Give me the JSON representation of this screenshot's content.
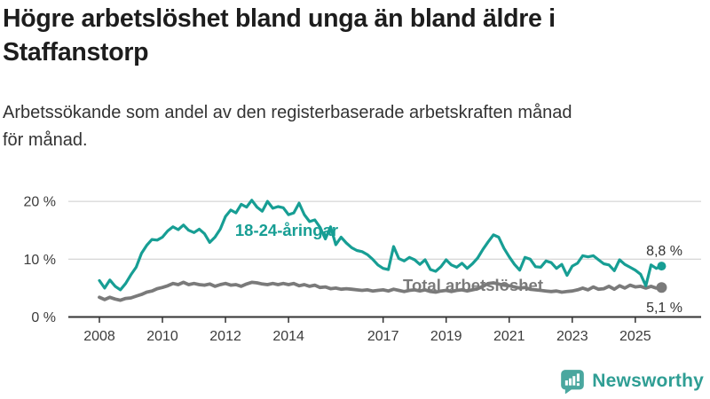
{
  "header": {
    "title_line1": "Högre arbetslöshet bland unga än bland äldre i",
    "title_line2": "Staffanstorp",
    "subtitle_line1": "Arbetssökande som andel av den registerbaserade arbetskraften månad",
    "subtitle_line2": "för månad."
  },
  "footer": {
    "brand": "Newsworthy",
    "logo_icon": "newsworthy-speech-bubble-bar-chart-icon"
  },
  "colors": {
    "youth_line": "#179e94",
    "total_line": "#7a7a7a",
    "axis": "#333333",
    "gridline": "#cccccc",
    "tick_label": "#3c3c3c",
    "annotation": "#333333",
    "title": "#1d1d1d",
    "brand_teal": "#2f9e94",
    "brand_icon_teal": "#4aa79f"
  },
  "chart_data": {
    "type": "line",
    "title": "Högre arbetslöshet bland unga än bland äldre i Staffanstorp",
    "subtitle": "Arbetssökande som andel av den registerbaserade arbetskraften månad för månad.",
    "unit": "%",
    "x_start_year": 2008,
    "x_step_months": 2,
    "x_end_year_approx": 2025.83,
    "x_tick_years": [
      2008,
      2010,
      2012,
      2014,
      2017,
      2019,
      2021,
      2023,
      2025
    ],
    "x_tick_labels": [
      "2008",
      "2010",
      "2012",
      "2014",
      "2017",
      "2019",
      "2021",
      "2023",
      "2025"
    ],
    "y_ticks": [
      0,
      10,
      20
    ],
    "y_tick_labels": [
      "0 %",
      "10 %",
      "20 %"
    ],
    "ylim": [
      0,
      21.5
    ],
    "grid": "horizontal",
    "legend_position": "inline-labels",
    "series": [
      {
        "name": "Total arbetslöshet",
        "color": "#7a7a7a",
        "end_label": "5,1 %",
        "end_value": 5.1,
        "values": [
          3.4,
          3.0,
          3.4,
          3.1,
          2.9,
          3.2,
          3.3,
          3.6,
          3.9,
          4.3,
          4.5,
          4.9,
          5.1,
          5.4,
          5.8,
          5.6,
          6.0,
          5.6,
          5.8,
          5.6,
          5.5,
          5.7,
          5.3,
          5.6,
          5.8,
          5.5,
          5.6,
          5.3,
          5.7,
          6.0,
          5.9,
          5.7,
          5.6,
          5.8,
          5.6,
          5.8,
          5.6,
          5.8,
          5.4,
          5.6,
          5.3,
          5.5,
          5.1,
          5.2,
          4.9,
          5.0,
          4.8,
          4.9,
          4.8,
          4.7,
          4.6,
          4.7,
          4.5,
          4.6,
          4.7,
          4.5,
          4.8,
          4.6,
          4.4,
          4.6,
          4.7,
          4.5,
          4.7,
          4.4,
          4.3,
          4.5,
          4.6,
          4.4,
          4.6,
          4.7,
          4.5,
          4.7,
          4.9,
          5.3,
          5.8,
          5.9,
          5.7,
          5.5,
          5.4,
          5.2,
          5.0,
          5.1,
          4.8,
          4.7,
          4.6,
          4.5,
          4.4,
          4.5,
          4.3,
          4.4,
          4.5,
          4.7,
          5.0,
          4.7,
          5.2,
          4.8,
          4.9,
          5.3,
          4.8,
          5.4,
          5.0,
          5.5,
          5.2,
          5.3,
          5.0,
          5.3,
          5.0,
          5.1
        ]
      },
      {
        "name": "18-24-åringar",
        "color": "#179e94",
        "end_label": "8,8 %",
        "end_value": 8.8,
        "values": [
          6.3,
          5.0,
          6.4,
          5.3,
          4.7,
          5.8,
          7.3,
          8.6,
          11.0,
          12.4,
          13.4,
          13.3,
          13.8,
          14.9,
          15.6,
          15.1,
          15.9,
          15.0,
          14.6,
          15.2,
          14.4,
          12.9,
          13.8,
          15.2,
          17.4,
          18.5,
          18.0,
          19.5,
          19.0,
          20.2,
          19.0,
          18.3,
          20.0,
          18.8,
          19.1,
          18.9,
          17.7,
          18.0,
          19.7,
          17.7,
          16.5,
          16.8,
          15.5,
          13.5,
          15.6,
          12.5,
          13.8,
          12.8,
          12.0,
          11.5,
          11.3,
          10.8,
          10.0,
          9.0,
          8.4,
          8.2,
          12.2,
          10.1,
          9.7,
          10.3,
          9.9,
          9.1,
          9.9,
          8.2,
          7.9,
          8.7,
          9.9,
          9.0,
          8.6,
          9.3,
          8.4,
          9.2,
          10.2,
          11.7,
          13.0,
          14.2,
          13.8,
          11.9,
          10.4,
          9.1,
          8.1,
          10.3,
          10.0,
          8.7,
          8.6,
          9.7,
          9.4,
          8.4,
          9.1,
          7.2,
          8.8,
          9.3,
          10.6,
          10.4,
          10.6,
          9.9,
          9.2,
          9.0,
          8.0,
          9.9,
          9.1,
          8.6,
          8.1,
          7.4,
          5.4,
          9.0,
          8.4,
          8.8
        ]
      }
    ]
  }
}
